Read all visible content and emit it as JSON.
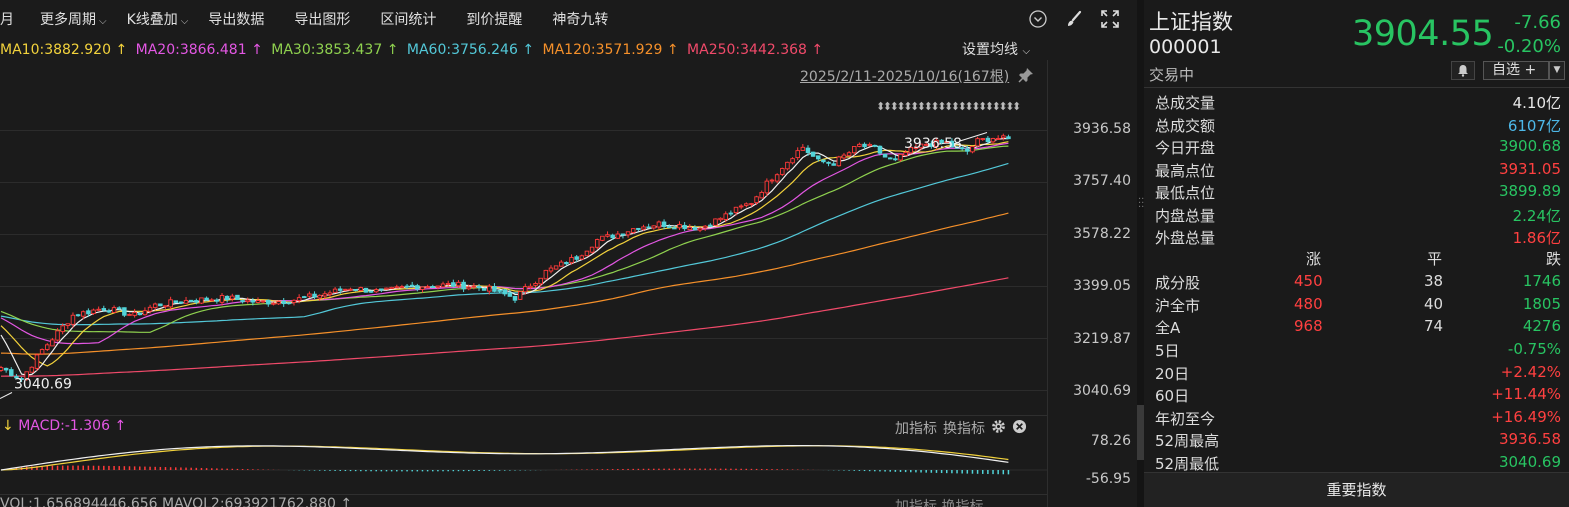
{
  "toolbar": {
    "items": [
      "月",
      "更多周期",
      "K线叠加",
      "导出数据",
      "导出图形",
      "区间统计",
      "到价提醒",
      "神奇九转"
    ]
  },
  "ma": [
    {
      "text": "MA10:3882.920 ↑",
      "color": "#f2d23c"
    },
    {
      "text": "MA20:3866.481 ↑",
      "color": "#e357e3"
    },
    {
      "text": "MA30:3853.437 ↑",
      "color": "#8fd14f"
    },
    {
      "text": "MA60:3756.246 ↑",
      "color": "#53c8d8"
    },
    {
      "text": "MA120:3571.929 ↑",
      "color": "#f5902a"
    },
    {
      "text": "MA250:3442.368 ↑",
      "color": "#f04a6a"
    }
  ],
  "ma_setting": "设置均线",
  "range_label": "2025/2/11-2025/10/16(167根)",
  "high_marker": "3936.58",
  "low_marker": "3040.69",
  "y_ticks": [
    "3936.58",
    "3757.40",
    "3578.22",
    "3399.05",
    "3219.87",
    "3040.69"
  ],
  "macd": {
    "label": "MACD:-1.306 ↑",
    "prefix": "↓",
    "add": "加指标",
    "switch": "换指标",
    "y_top": "78.26",
    "y_bottom": "-56.95"
  },
  "vol": {
    "label": "VOL:1.656894446.656   MAVOL2:693921762.880 ↑",
    "tools": "加指标  换指标"
  },
  "quote": {
    "name": "上证指数",
    "code": "000001",
    "status": "交易中",
    "price": "3904.55",
    "change": "-7.66",
    "change_pct": "-0.20%",
    "watch_label": "自选 +"
  },
  "stats": [
    {
      "label": "总成交量",
      "value": "4.10亿",
      "color": "#e8e8e8"
    },
    {
      "label": "总成交额",
      "value": "6107亿",
      "color": "#4db8e8"
    },
    {
      "label": "今日开盘",
      "value": "3900.68",
      "color": "#28c462"
    },
    {
      "label": "最高点位",
      "value": "3931.05",
      "color": "#ff4040"
    },
    {
      "label": "最低点位",
      "value": "3899.89",
      "color": "#28c462"
    },
    {
      "label": "内盘总量",
      "value": "2.24亿",
      "color": "#28c462"
    },
    {
      "label": "外盘总量",
      "value": "1.86亿",
      "color": "#ff4040"
    }
  ],
  "breadth_head": {
    "up": "涨",
    "flat": "平",
    "down": "跌"
  },
  "breadth": [
    {
      "name": "成分股",
      "up": "450",
      "flat": "38",
      "down": "1746"
    },
    {
      "name": "沪全市",
      "up": "480",
      "flat": "40",
      "down": "1805"
    },
    {
      "name": "全A",
      "up": "968",
      "flat": "74",
      "down": "4276"
    }
  ],
  "periods": [
    {
      "label": "5日",
      "value": "-0.75%",
      "color": "#28c462"
    },
    {
      "label": "20日",
      "value": "+2.42%",
      "color": "#ff4040"
    },
    {
      "label": "60日",
      "value": "+11.44%",
      "color": "#ff4040"
    },
    {
      "label": "年初至今",
      "value": "+16.49%",
      "color": "#ff4040"
    },
    {
      "label": "52周最高",
      "value": "3936.58",
      "color": "#ff4040"
    },
    {
      "label": "52周最低",
      "value": "3040.69",
      "color": "#28c462"
    }
  ],
  "bottom_button": "重要指数",
  "chart_data": {
    "type": "candlestick",
    "y_range": [
      3040.69,
      3936.58
    ],
    "close_anchors": [
      [
        0,
        3120
      ],
      [
        4,
        3080
      ],
      [
        8,
        3180
      ],
      [
        14,
        3300
      ],
      [
        20,
        3325
      ],
      [
        26,
        3300
      ],
      [
        30,
        3335
      ],
      [
        36,
        3350
      ],
      [
        44,
        3360
      ],
      [
        50,
        3345
      ],
      [
        56,
        3350
      ],
      [
        62,
        3370
      ],
      [
        68,
        3395
      ],
      [
        74,
        3380
      ],
      [
        80,
        3400
      ],
      [
        88,
        3405
      ],
      [
        94,
        3395
      ],
      [
        100,
        3360
      ],
      [
        106,
        3450
      ],
      [
        112,
        3500
      ],
      [
        116,
        3560
      ],
      [
        120,
        3580
      ],
      [
        124,
        3605
      ],
      [
        128,
        3615
      ],
      [
        132,
        3610
      ],
      [
        136,
        3600
      ],
      [
        140,
        3635
      ],
      [
        146,
        3690
      ],
      [
        150,
        3775
      ],
      [
        154,
        3850
      ],
      [
        156,
        3880
      ],
      [
        159,
        3830
      ],
      [
        162,
        3825
      ],
      [
        165,
        3860
      ],
      [
        167,
        3885
      ],
      [
        170,
        3875
      ],
      [
        172,
        3845
      ],
      [
        174,
        3830
      ],
      [
        176,
        3860
      ],
      [
        180,
        3890
      ],
      [
        184,
        3895
      ],
      [
        186,
        3870
      ],
      [
        188,
        3865
      ],
      [
        190,
        3900
      ],
      [
        193,
        3912
      ],
      [
        196,
        3905
      ]
    ]
  }
}
